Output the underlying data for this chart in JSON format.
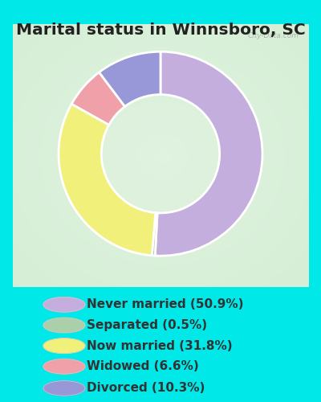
{
  "title": "Marital status in Winnsboro, SC",
  "slices": [
    50.9,
    0.5,
    31.8,
    6.6,
    10.3
  ],
  "labels": [
    "Never married (50.9%)",
    "Separated (0.5%)",
    "Now married (31.8%)",
    "Widowed (6.6%)",
    "Divorced (10.3%)"
  ],
  "colors": [
    "#c4aedd",
    "#aacfaa",
    "#f0f07a",
    "#f0a0a8",
    "#9898d8"
  ],
  "legend_colors": [
    "#c4aedd",
    "#aacfaa",
    "#f0f07a",
    "#f0a0a8",
    "#9898d8"
  ],
  "bg_cyan": "#00e8e8",
  "chart_bg_light": "#e8f5e8",
  "title_fontsize": 14.5,
  "legend_fontsize": 11,
  "watermark": "City-Data.com",
  "donut_width": 0.42,
  "startangle": 90
}
